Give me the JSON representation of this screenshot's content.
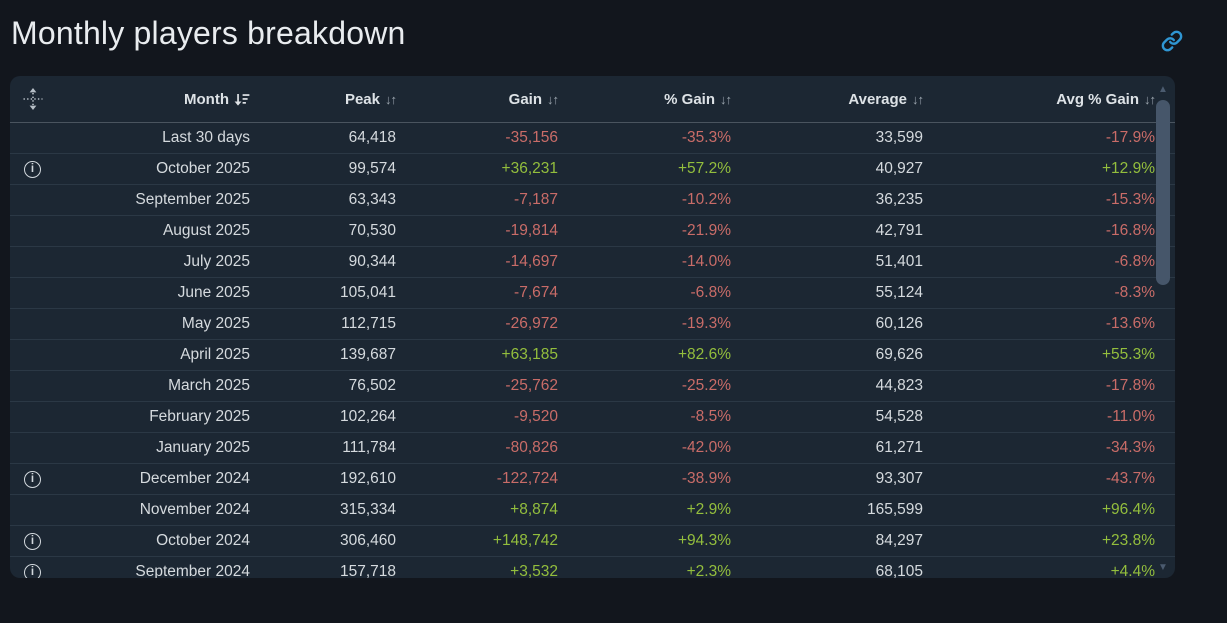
{
  "page": {
    "title": "Monthly players breakdown"
  },
  "colors": {
    "positive_green": "#93be3d",
    "negative_red": "#c96c68",
    "link_blue": "#2f96d3",
    "card_bg": "#1c2733",
    "page_bg": "#12161d"
  },
  "glyphs": {
    "unsorted": "↓↑",
    "scroll_up": "▲",
    "scroll_down": "▼",
    "info": "i"
  },
  "table": {
    "sorted_column": "Month",
    "sort_direction": "descending",
    "columns": [
      {
        "label": "Month"
      },
      {
        "label": "Peak"
      },
      {
        "label": "Gain"
      },
      {
        "label": "% Gain"
      },
      {
        "label": "Average"
      },
      {
        "label": "Avg % Gain"
      }
    ],
    "rows": [
      {
        "month": "Last 30 days",
        "peak": "64,418",
        "gain": "-35,156",
        "gain_pct": "-35.3%",
        "average": "33,599",
        "avg_pct": "-17.9%",
        "info": false
      },
      {
        "month": "October 2025",
        "peak": "99,574",
        "gain": "+36,231",
        "gain_pct": "+57.2%",
        "average": "40,927",
        "avg_pct": "+12.9%",
        "info": true
      },
      {
        "month": "September 2025",
        "peak": "63,343",
        "gain": "-7,187",
        "gain_pct": "-10.2%",
        "average": "36,235",
        "avg_pct": "-15.3%",
        "info": false
      },
      {
        "month": "August 2025",
        "peak": "70,530",
        "gain": "-19,814",
        "gain_pct": "-21.9%",
        "average": "42,791",
        "avg_pct": "-16.8%",
        "info": false
      },
      {
        "month": "July 2025",
        "peak": "90,344",
        "gain": "-14,697",
        "gain_pct": "-14.0%",
        "average": "51,401",
        "avg_pct": "-6.8%",
        "info": false
      },
      {
        "month": "June 2025",
        "peak": "105,041",
        "gain": "-7,674",
        "gain_pct": "-6.8%",
        "average": "55,124",
        "avg_pct": "-8.3%",
        "info": false
      },
      {
        "month": "May 2025",
        "peak": "112,715",
        "gain": "-26,972",
        "gain_pct": "-19.3%",
        "average": "60,126",
        "avg_pct": "-13.6%",
        "info": false
      },
      {
        "month": "April 2025",
        "peak": "139,687",
        "gain": "+63,185",
        "gain_pct": "+82.6%",
        "average": "69,626",
        "avg_pct": "+55.3%",
        "info": false
      },
      {
        "month": "March 2025",
        "peak": "76,502",
        "gain": "-25,762",
        "gain_pct": "-25.2%",
        "average": "44,823",
        "avg_pct": "-17.8%",
        "info": false
      },
      {
        "month": "February 2025",
        "peak": "102,264",
        "gain": "-9,520",
        "gain_pct": "-8.5%",
        "average": "54,528",
        "avg_pct": "-11.0%",
        "info": false
      },
      {
        "month": "January 2025",
        "peak": "111,784",
        "gain": "-80,826",
        "gain_pct": "-42.0%",
        "average": "61,271",
        "avg_pct": "-34.3%",
        "info": false
      },
      {
        "month": "December 2024",
        "peak": "192,610",
        "gain": "-122,724",
        "gain_pct": "-38.9%",
        "average": "93,307",
        "avg_pct": "-43.7%",
        "info": true
      },
      {
        "month": "November 2024",
        "peak": "315,334",
        "gain": "+8,874",
        "gain_pct": "+2.9%",
        "average": "165,599",
        "avg_pct": "+96.4%",
        "info": false
      },
      {
        "month": "October 2024",
        "peak": "306,460",
        "gain": "+148,742",
        "gain_pct": "+94.3%",
        "average": "84,297",
        "avg_pct": "+23.8%",
        "info": true
      },
      {
        "month": "September 2024",
        "peak": "157,718",
        "gain": "+3,532",
        "gain_pct": "+2.3%",
        "average": "68,105",
        "avg_pct": "+4.4%",
        "info": true
      }
    ]
  }
}
